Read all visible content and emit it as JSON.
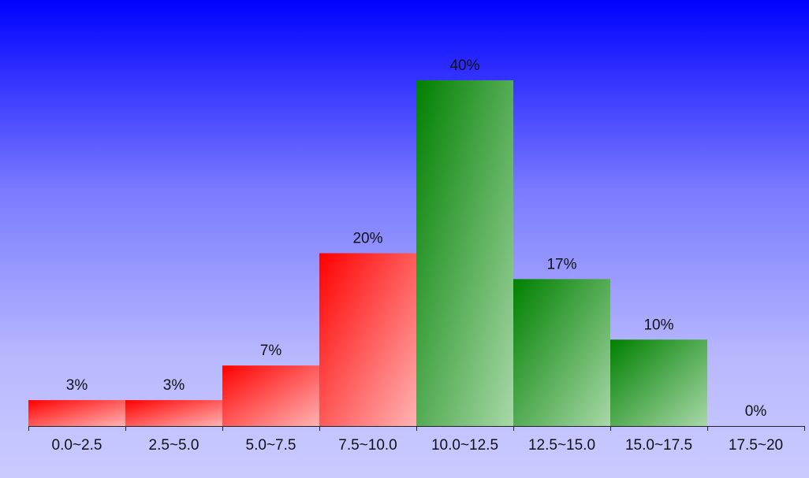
{
  "chart_data": {
    "type": "bar",
    "title": "",
    "xlabel": "",
    "ylabel": "",
    "categories": [
      "0.0~2.5",
      "2.5~5.0",
      "5.0~7.5",
      "7.5~10.0",
      "10.0~12.5",
      "12.5~15.0",
      "15.0~17.5",
      "17.5~20"
    ],
    "values": [
      3,
      3,
      7,
      20,
      40,
      17,
      10,
      0
    ],
    "value_labels": [
      "3%",
      "3%",
      "7%",
      "20%",
      "40%",
      "17%",
      "10%",
      "0%"
    ],
    "unit": "%",
    "ylim": [
      0,
      40
    ],
    "grid": false,
    "legend": "none",
    "bar_colors": [
      "red",
      "red",
      "red",
      "red",
      "green",
      "green",
      "green",
      "green"
    ]
  },
  "colors": {
    "background_top": "#0000ff",
    "background_bottom": "#cbcbff",
    "red_start": "#ff0000",
    "red_end": "#ffb3b3",
    "green_start": "#008000",
    "green_end": "#a8d8a8",
    "text": "#111111",
    "axis": "#222222"
  }
}
